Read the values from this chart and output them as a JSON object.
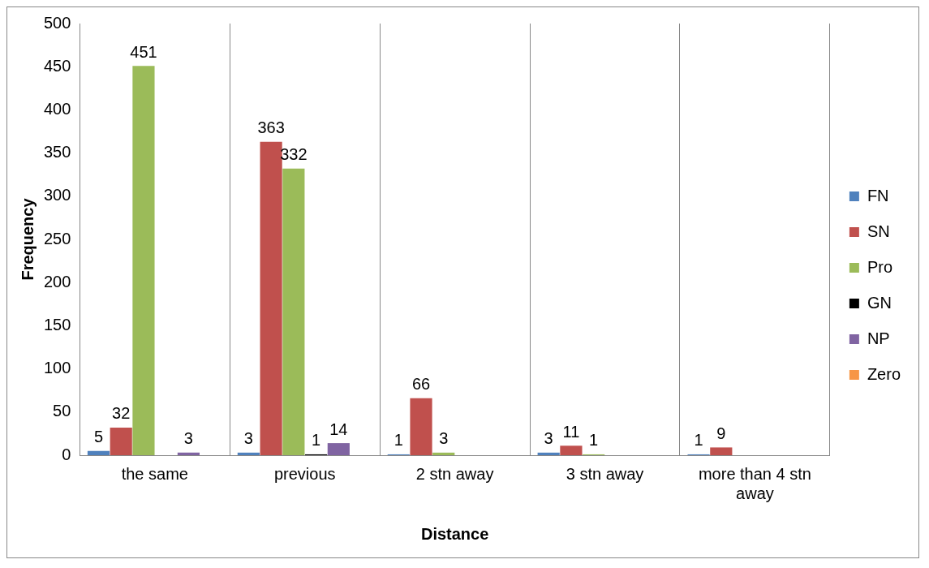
{
  "chart_data": {
    "type": "bar",
    "xlabel": "Distance",
    "ylabel": "Frequency",
    "categories": [
      "the same",
      "previous",
      "2 stn away",
      "3 stn away",
      "more than 4 stn away"
    ],
    "series": [
      {
        "name": "FN",
        "color": "#4f81bd",
        "values": [
          5,
          3,
          1,
          3,
          1
        ]
      },
      {
        "name": "SN",
        "color": "#c0504d",
        "values": [
          32,
          363,
          66,
          11,
          9
        ]
      },
      {
        "name": "Pro",
        "color": "#9bbb59",
        "values": [
          451,
          332,
          3,
          1,
          null
        ]
      },
      {
        "name": "GN",
        "color": "#000000",
        "values": [
          null,
          1,
          null,
          null,
          null
        ]
      },
      {
        "name": "NP",
        "color": "#8064a2",
        "values": [
          3,
          14,
          null,
          null,
          null
        ]
      },
      {
        "name": "Zero",
        "color": "#f79646",
        "values": [
          null,
          null,
          null,
          null,
          null
        ]
      }
    ],
    "ylim": [
      0,
      500
    ],
    "yticks": [
      0,
      50,
      100,
      150,
      200,
      250,
      300,
      350,
      400,
      450,
      500
    ],
    "grid": "x",
    "legend": "right",
    "data_labels": true
  }
}
